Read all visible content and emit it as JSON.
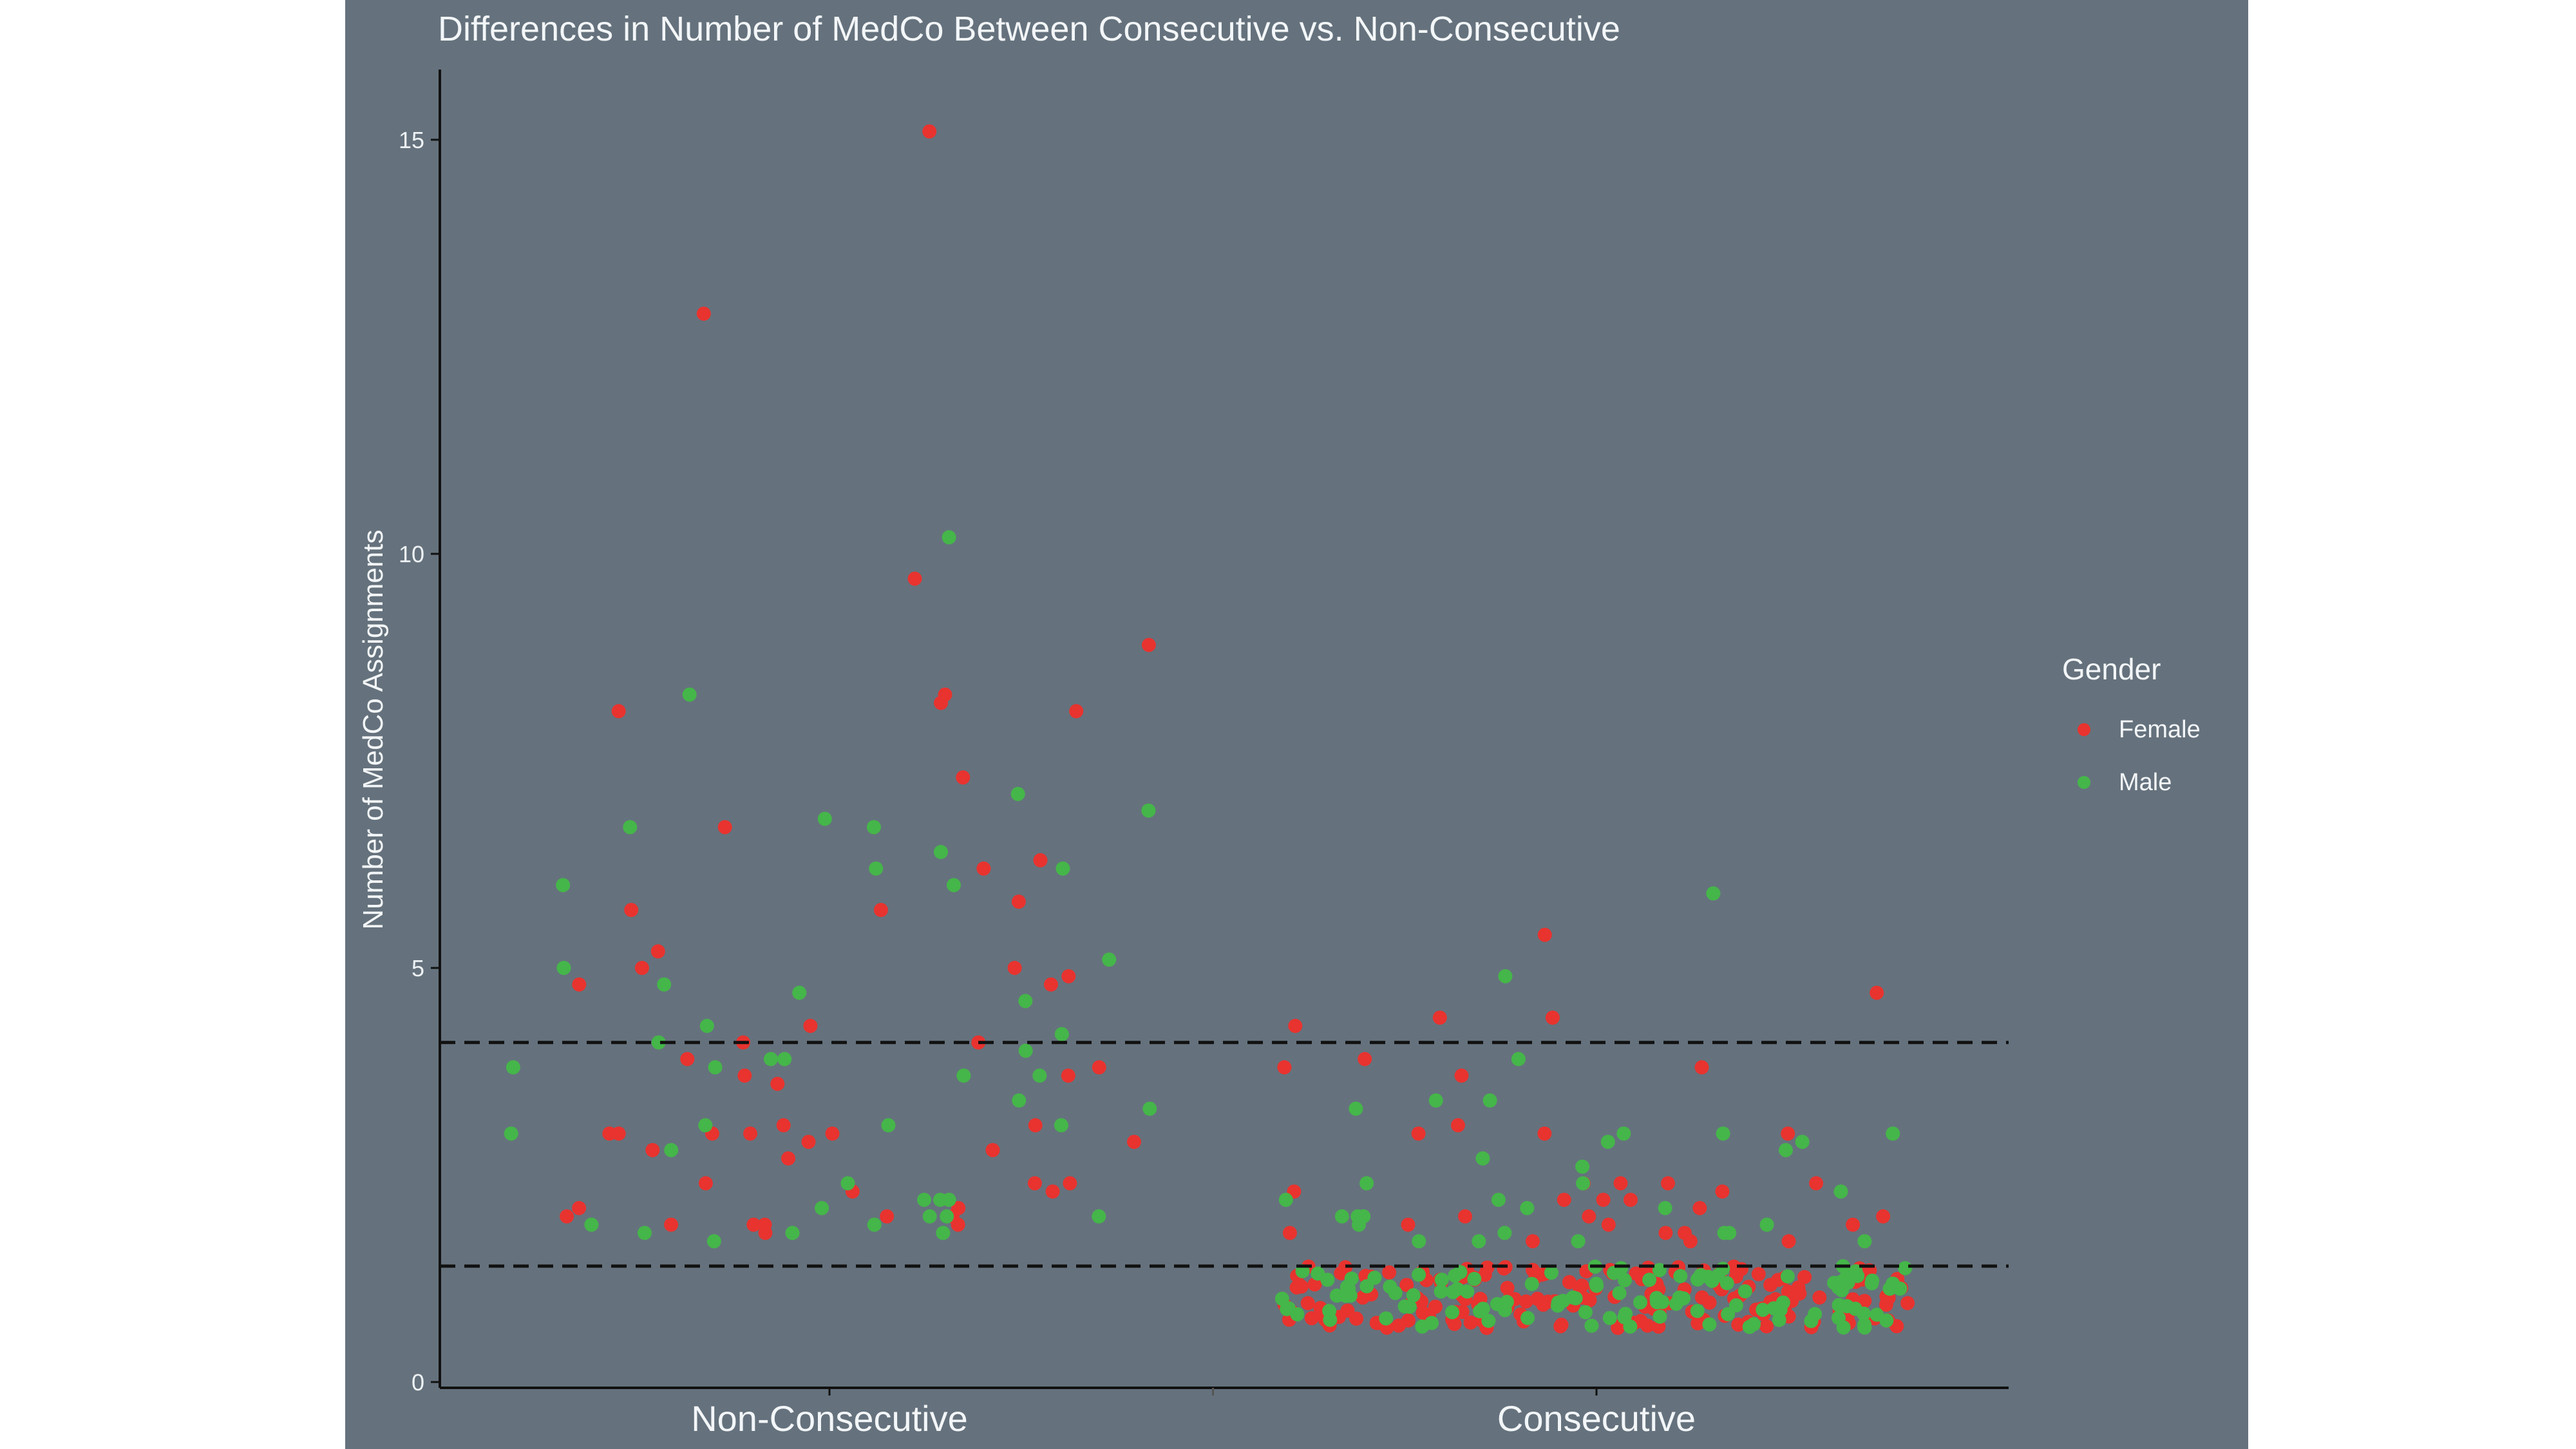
{
  "chart_data": {
    "type": "scatter",
    "title": "Differences in Number of MedCo Between Consecutive vs. Non-Consecutive",
    "xlabel": "",
    "ylabel": "Number of MedCo Assignments",
    "categories": [
      "Non-Consecutive",
      "Consecutive"
    ],
    "y_ticks": [
      0,
      5,
      10,
      15
    ],
    "ylim": [
      0,
      16
    ],
    "grid": false,
    "legend": {
      "title": "Gender",
      "position": "right"
    },
    "reference_lines": [
      4.1,
      1.4
    ],
    "colors": {
      "Female": "#e8332f",
      "Male": "#45b649",
      "background": "#65727d",
      "axis": "#111111"
    },
    "series": [
      {
        "name": "Female",
        "points": [
          [
            "Non-Consecutive",
            15.1
          ],
          [
            "Non-Consecutive",
            12.9
          ],
          [
            "Non-Consecutive",
            9.7
          ],
          [
            "Non-Consecutive",
            8.9
          ],
          [
            "Non-Consecutive",
            8.3
          ],
          [
            "Non-Consecutive",
            8.2
          ],
          [
            "Non-Consecutive",
            8.1
          ],
          [
            "Non-Consecutive",
            8.1
          ],
          [
            "Non-Consecutive",
            7.3
          ],
          [
            "Non-Consecutive",
            6.3
          ],
          [
            "Non-Consecutive",
            6.2
          ],
          [
            "Non-Consecutive",
            6.7
          ],
          [
            "Non-Consecutive",
            5.8
          ],
          [
            "Non-Consecutive",
            5.7
          ],
          [
            "Non-Consecutive",
            5.7
          ],
          [
            "Non-Consecutive",
            5.2
          ],
          [
            "Non-Consecutive",
            5.0
          ],
          [
            "Non-Consecutive",
            5.0
          ],
          [
            "Non-Consecutive",
            4.9
          ],
          [
            "Non-Consecutive",
            4.8
          ],
          [
            "Non-Consecutive",
            4.8
          ],
          [
            "Non-Consecutive",
            4.3
          ],
          [
            "Non-Consecutive",
            4.1
          ],
          [
            "Non-Consecutive",
            4.1
          ],
          [
            "Non-Consecutive",
            3.9
          ],
          [
            "Non-Consecutive",
            3.7
          ],
          [
            "Non-Consecutive",
            3.8
          ],
          [
            "Non-Consecutive",
            3.7
          ],
          [
            "Non-Consecutive",
            3.6
          ],
          [
            "Non-Consecutive",
            3.1
          ],
          [
            "Non-Consecutive",
            3.1
          ],
          [
            "Non-Consecutive",
            3.0
          ],
          [
            "Non-Consecutive",
            3.0
          ],
          [
            "Non-Consecutive",
            3.0
          ],
          [
            "Non-Consecutive",
            3.0
          ],
          [
            "Non-Consecutive",
            3.0
          ],
          [
            "Non-Consecutive",
            2.9
          ],
          [
            "Non-Consecutive",
            2.9
          ],
          [
            "Non-Consecutive",
            2.8
          ],
          [
            "Non-Consecutive",
            2.8
          ],
          [
            "Non-Consecutive",
            2.7
          ],
          [
            "Non-Consecutive",
            2.4
          ],
          [
            "Non-Consecutive",
            2.4
          ],
          [
            "Non-Consecutive",
            2.4
          ],
          [
            "Non-Consecutive",
            2.3
          ],
          [
            "Non-Consecutive",
            2.3
          ],
          [
            "Non-Consecutive",
            2.1
          ],
          [
            "Non-Consecutive",
            2.1
          ],
          [
            "Non-Consecutive",
            2.0
          ],
          [
            "Non-Consecutive",
            2.0
          ],
          [
            "Non-Consecutive",
            2.0
          ],
          [
            "Non-Consecutive",
            1.9
          ],
          [
            "Non-Consecutive",
            1.9
          ],
          [
            "Non-Consecutive",
            1.9
          ],
          [
            "Non-Consecutive",
            1.9
          ],
          [
            "Non-Consecutive",
            1.8
          ],
          [
            "Consecutive",
            5.4
          ],
          [
            "Consecutive",
            4.7
          ],
          [
            "Consecutive",
            4.4
          ],
          [
            "Consecutive",
            4.3
          ],
          [
            "Consecutive",
            4.4
          ],
          [
            "Consecutive",
            3.9
          ],
          [
            "Consecutive",
            3.8
          ],
          [
            "Consecutive",
            3.8
          ],
          [
            "Consecutive",
            3.7
          ],
          [
            "Consecutive",
            3.1
          ],
          [
            "Consecutive",
            3.0
          ],
          [
            "Consecutive",
            3.0
          ],
          [
            "Consecutive",
            3.0
          ],
          [
            "Consecutive",
            2.4
          ],
          [
            "Consecutive",
            2.4
          ],
          [
            "Consecutive",
            2.4
          ],
          [
            "Consecutive",
            2.4
          ],
          [
            "Consecutive",
            2.3
          ],
          [
            "Consecutive",
            2.3
          ],
          [
            "Consecutive",
            2.2
          ],
          [
            "Consecutive",
            2.2
          ],
          [
            "Consecutive",
            2.2
          ],
          [
            "Consecutive",
            2.1
          ],
          [
            "Consecutive",
            2.0
          ],
          [
            "Consecutive",
            2.0
          ],
          [
            "Consecutive",
            2.0
          ],
          [
            "Consecutive",
            1.9
          ],
          [
            "Consecutive",
            1.9
          ],
          [
            "Consecutive",
            1.9
          ],
          [
            "Consecutive",
            1.8
          ],
          [
            "Consecutive",
            1.8
          ],
          [
            "Consecutive",
            1.8
          ],
          [
            "Consecutive",
            1.7
          ],
          [
            "Consecutive",
            1.7
          ],
          [
            "Consecutive",
            1.7
          ]
        ]
      },
      {
        "name": "Male",
        "points": [
          [
            "Non-Consecutive",
            10.2
          ],
          [
            "Non-Consecutive",
            8.3
          ],
          [
            "Non-Consecutive",
            7.1
          ],
          [
            "Non-Consecutive",
            6.9
          ],
          [
            "Non-Consecutive",
            6.8
          ],
          [
            "Non-Consecutive",
            6.7
          ],
          [
            "Non-Consecutive",
            6.7
          ],
          [
            "Non-Consecutive",
            6.4
          ],
          [
            "Non-Consecutive",
            6.2
          ],
          [
            "Non-Consecutive",
            6.2
          ],
          [
            "Non-Consecutive",
            6.0
          ],
          [
            "Non-Consecutive",
            6.0
          ],
          [
            "Non-Consecutive",
            5.1
          ],
          [
            "Non-Consecutive",
            5.0
          ],
          [
            "Non-Consecutive",
            4.8
          ],
          [
            "Non-Consecutive",
            4.7
          ],
          [
            "Non-Consecutive",
            4.6
          ],
          [
            "Non-Consecutive",
            4.3
          ],
          [
            "Non-Consecutive",
            4.2
          ],
          [
            "Non-Consecutive",
            4.1
          ],
          [
            "Non-Consecutive",
            4.0
          ],
          [
            "Non-Consecutive",
            3.9
          ],
          [
            "Non-Consecutive",
            3.9
          ],
          [
            "Non-Consecutive",
            3.8
          ],
          [
            "Non-Consecutive",
            3.8
          ],
          [
            "Non-Consecutive",
            3.7
          ],
          [
            "Non-Consecutive",
            3.7
          ],
          [
            "Non-Consecutive",
            3.4
          ],
          [
            "Non-Consecutive",
            3.3
          ],
          [
            "Non-Consecutive",
            3.1
          ],
          [
            "Non-Consecutive",
            3.1
          ],
          [
            "Non-Consecutive",
            3.1
          ],
          [
            "Non-Consecutive",
            3.0
          ],
          [
            "Non-Consecutive",
            2.8
          ],
          [
            "Non-Consecutive",
            2.4
          ],
          [
            "Non-Consecutive",
            2.2
          ],
          [
            "Non-Consecutive",
            2.2
          ],
          [
            "Non-Consecutive",
            2.2
          ],
          [
            "Non-Consecutive",
            2.1
          ],
          [
            "Non-Consecutive",
            2.0
          ],
          [
            "Non-Consecutive",
            2.0
          ],
          [
            "Non-Consecutive",
            2.0
          ],
          [
            "Non-Consecutive",
            1.9
          ],
          [
            "Non-Consecutive",
            1.9
          ],
          [
            "Non-Consecutive",
            1.8
          ],
          [
            "Non-Consecutive",
            1.8
          ],
          [
            "Non-Consecutive",
            1.8
          ],
          [
            "Non-Consecutive",
            1.7
          ],
          [
            "Consecutive",
            5.9
          ],
          [
            "Consecutive",
            4.9
          ],
          [
            "Consecutive",
            3.9
          ],
          [
            "Consecutive",
            3.4
          ],
          [
            "Consecutive",
            3.4
          ],
          [
            "Consecutive",
            3.3
          ],
          [
            "Consecutive",
            3.0
          ],
          [
            "Consecutive",
            3.0
          ],
          [
            "Consecutive",
            3.0
          ],
          [
            "Consecutive",
            2.9
          ],
          [
            "Consecutive",
            2.9
          ],
          [
            "Consecutive",
            2.8
          ],
          [
            "Consecutive",
            2.7
          ],
          [
            "Consecutive",
            2.6
          ],
          [
            "Consecutive",
            2.4
          ],
          [
            "Consecutive",
            2.4
          ],
          [
            "Consecutive",
            2.3
          ],
          [
            "Consecutive",
            2.2
          ],
          [
            "Consecutive",
            2.2
          ],
          [
            "Consecutive",
            2.1
          ],
          [
            "Consecutive",
            2.1
          ],
          [
            "Consecutive",
            2.0
          ],
          [
            "Consecutive",
            2.0
          ],
          [
            "Consecutive",
            2.0
          ],
          [
            "Consecutive",
            1.9
          ],
          [
            "Consecutive",
            1.9
          ],
          [
            "Consecutive",
            1.8
          ],
          [
            "Consecutive",
            1.8
          ],
          [
            "Consecutive",
            1.8
          ],
          [
            "Consecutive",
            1.7
          ],
          [
            "Consecutive",
            1.7
          ],
          [
            "Consecutive",
            1.7
          ],
          [
            "Consecutive",
            1.7
          ]
        ]
      }
    ]
  }
}
